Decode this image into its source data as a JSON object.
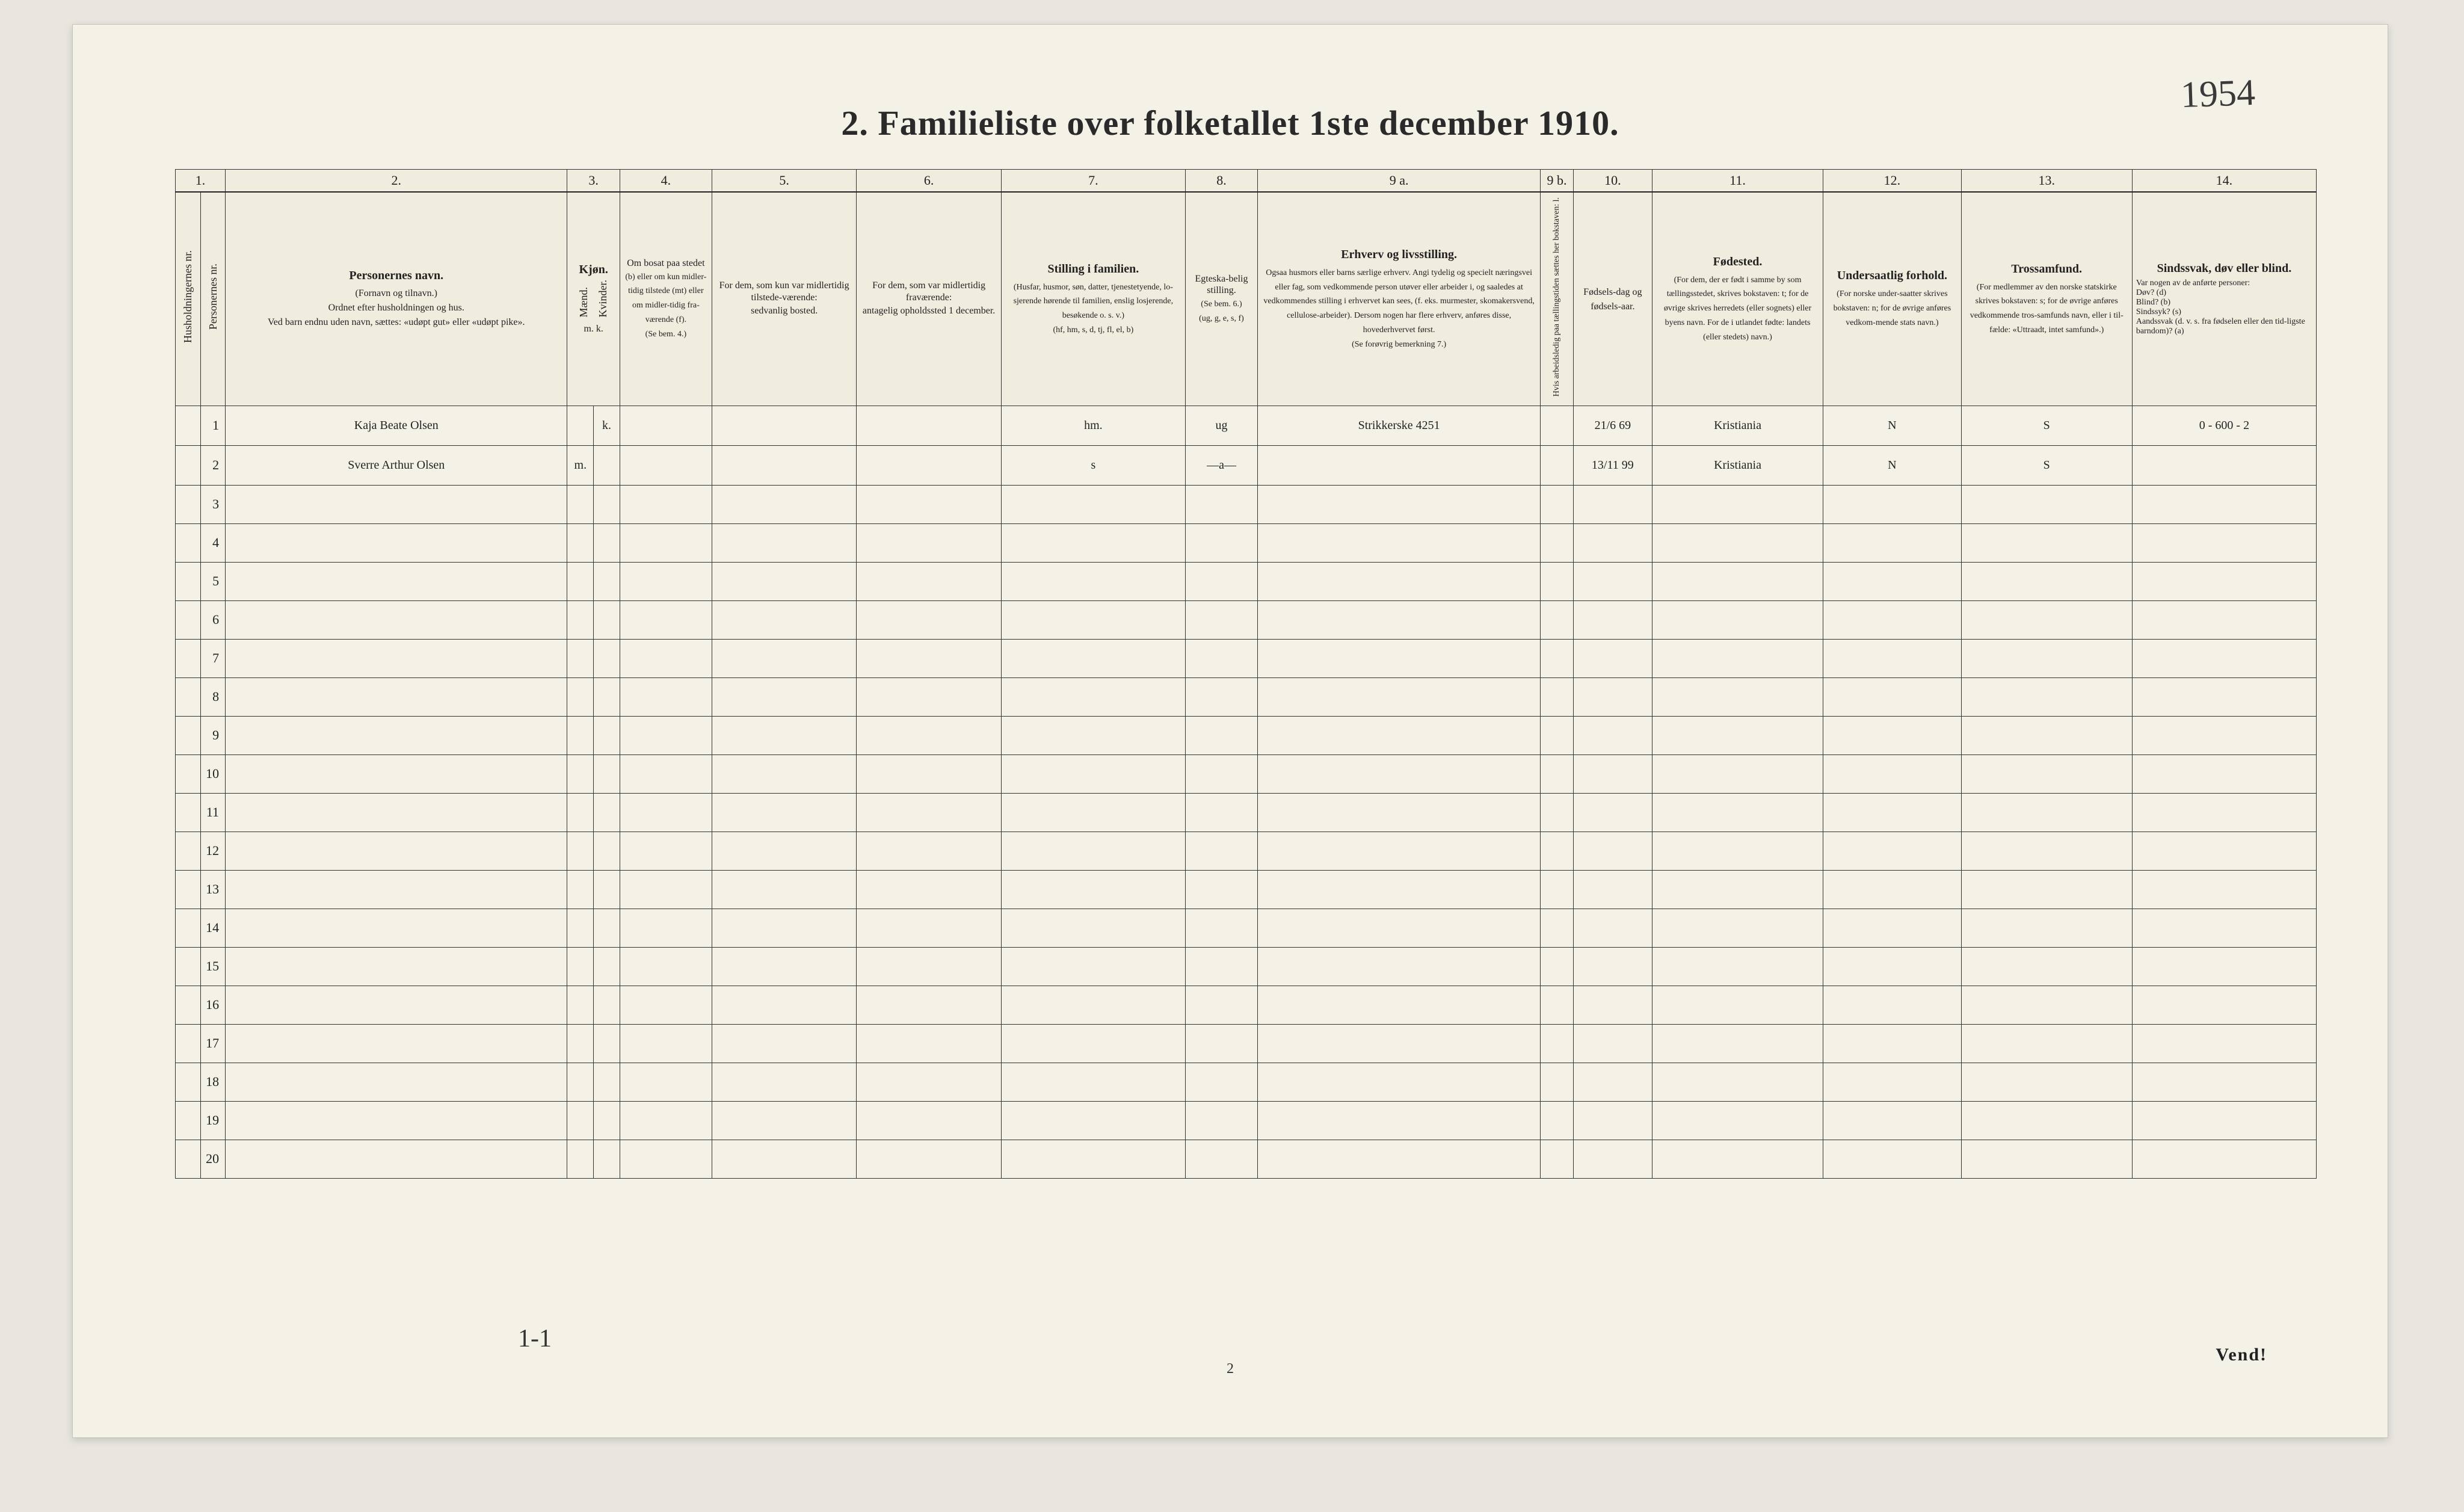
{
  "title": "2.   Familieliste over folketallet 1ste december 1910.",
  "handwritten_ref": "1954",
  "page_number": "2",
  "vend": "Vend!",
  "bottom_scribble": "1-1",
  "colors": {
    "page_bg": "#f4f1e6",
    "outer_bg": "#e8e6df",
    "ink": "#2a2a2a",
    "rule": "#333333"
  },
  "col_numbers": [
    "1.",
    "2.",
    "3.",
    "4.",
    "5.",
    "6.",
    "7.",
    "8.",
    "9 a.",
    "9 b.",
    "10.",
    "11.",
    "12.",
    "13.",
    "14."
  ],
  "headers": {
    "hh": "Husholdningernes nr.",
    "pn": "Personernes nr.",
    "name_title": "Personernes navn.",
    "name_sub": "(Fornavn og tilnavn.)\nOrdnet efter husholdningen og hus.\nVed barn endnu uden navn, sættes: «udøpt gut» eller «udøpt pike».",
    "kjon": "Kjøn.",
    "kjon_sub1": "Mænd.",
    "kjon_sub2": "Kvinder.",
    "kjon_foot": "m.  k.",
    "bosat_title": "Om bosat paa stedet",
    "bosat_sub": "(b) eller om kun midler-tidig tilstede (mt) eller om midler-tidig fra-værende (f).\n(Se bem. 4.)",
    "mt_title": "For dem, som kun var midlertidig tilstede-værende:",
    "mt_sub": "sedvanlig bosted.",
    "mf_title": "For dem, som var midlertidig fraværende:",
    "mf_sub": "antagelig opholdssted 1 december.",
    "stf_title": "Stilling i familien.",
    "stf_sub": "(Husfar, husmor, søn, datter, tjenestetyende, lo-sjerende hørende til familien, enslig losjerende, besøkende o. s. v.)\n(hf, hm, s, d, tj, fl, el, b)",
    "egt_title": "Egteska-belig stilling.",
    "egt_sub": "(Se bem. 6.)\n(ug, g, e, s, f)",
    "erh_title": "Erhverv og livsstilling.",
    "erh_sub": "Ogsaa husmors eller barns særlige erhverv. Angi tydelig og specielt næringsvei eller fag, som vedkommende person utøver eller arbeider i, og saaledes at vedkommendes stilling i erhvervet kan sees, (f. eks. murmester, skomakersvend, cellulose-arbeider). Dersom nogen har flere erhverv, anføres disse, hovederhvervet først.\n(Se forøvrig bemerkning 7.)",
    "nine_b": "Hvis arbeidsledig paa tællingstiden sættes her bokstaven: l.",
    "fd_title": "Fødsels-dag og fødsels-aar.",
    "fs_title": "Fødested.",
    "fs_sub": "(For dem, der er født i samme by som tællingsstedet, skrives bokstaven: t; for de øvrige skrives herredets (eller sognets) eller byens navn. For de i utlandet fødte: landets (eller stedets) navn.)",
    "und_title": "Undersaatlig forhold.",
    "und_sub": "(For norske under-saatter skrives bokstaven: n; for de øvrige anføres vedkom-mende stats navn.)",
    "tro_title": "Trossamfund.",
    "tro_sub": "(For medlemmer av den norske statskirke skrives bokstaven: s; for de øvrige anføres vedkommende tros-samfunds navn, eller i til-fælde: «Uttraadt, intet samfund».)",
    "sin_title": "Sindssvak, døv eller blind.",
    "sin_sub": "Var nogen av de anførte personer:\nDøv?        (d)\nBlind?       (b)\nSindssyk?  (s)\nAandssvak (d. v. s. fra fødselen eller den tid-ligste barndom)? (a)"
  },
  "rows": [
    {
      "n": "1",
      "name": "Kaja Beate Olsen",
      "sex": "k.",
      "bosat": "",
      "stf": "hm.",
      "egt": "ug",
      "erh": "Strikkerske 4251",
      "fd": "21/6 69",
      "fs": "Kristiania",
      "und": "N",
      "tro": "S",
      "sin": "0 - 600 - 2"
    },
    {
      "n": "2",
      "name": "Sverre Arthur Olsen",
      "sex": "m.",
      "bosat": "",
      "stf": "s",
      "egt": "—a—",
      "erh": "",
      "fd": "13/11 99",
      "fs": "Kristiania",
      "und": "N",
      "tro": "S",
      "sin": ""
    }
  ],
  "empty_rows": [
    "3",
    "4",
    "5",
    "6",
    "7",
    "8",
    "9",
    "10",
    "11",
    "12",
    "13",
    "14",
    "15",
    "16",
    "17",
    "18",
    "19",
    "20"
  ]
}
